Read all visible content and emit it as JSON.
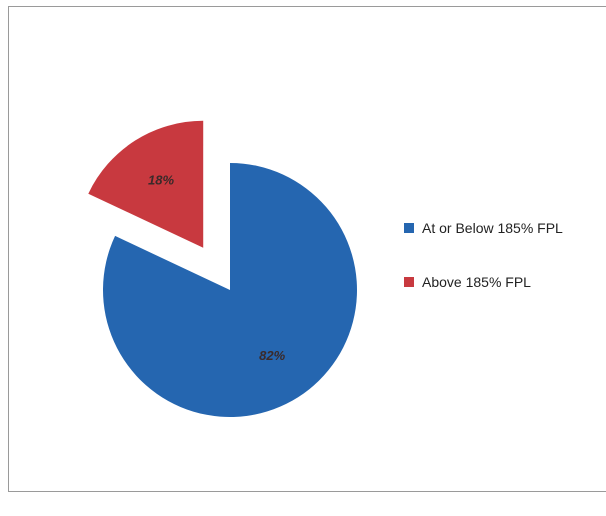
{
  "chart_data": {
    "type": "pie",
    "slices": [
      {
        "label": "At or Below 185% FPL",
        "value": 82,
        "display": "82%",
        "color": "#2566b0"
      },
      {
        "label": "Above 185% FPL",
        "value": 18,
        "display": "18%",
        "color": "#c8393f"
      }
    ],
    "exploded": "Above 185% FPL",
    "legend_position": "right"
  }
}
